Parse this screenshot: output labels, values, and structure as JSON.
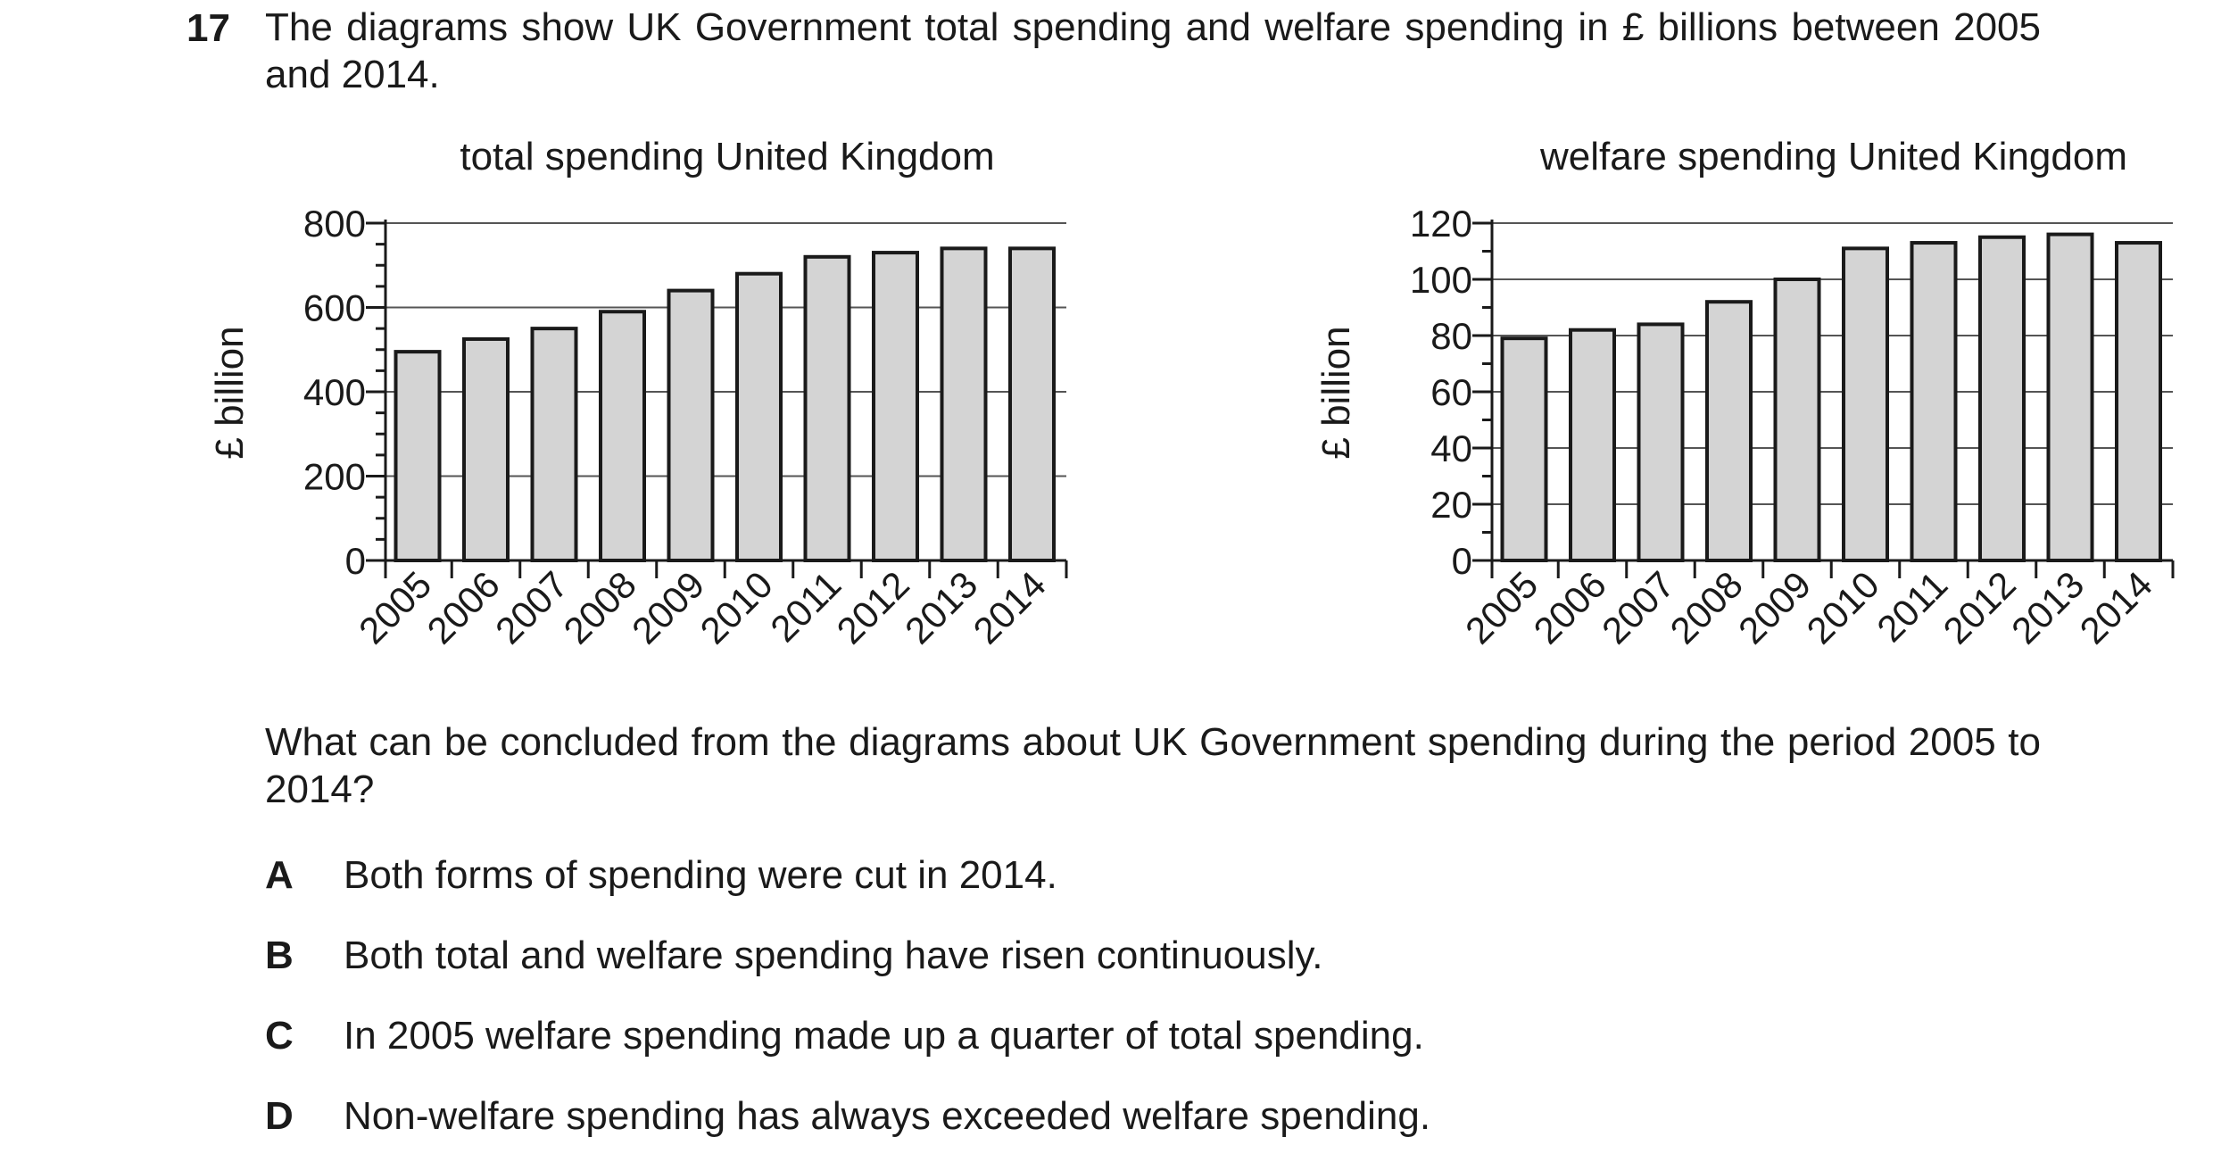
{
  "question": {
    "number": "17",
    "stem": "The diagrams show UK Government total spending and welfare spending in £ billions between 2005 and 2014.",
    "prompt": "What can be concluded from the diagrams about UK Government spending during the period 2005 to 2014?",
    "options": [
      {
        "letter": "A",
        "text": "Both forms of spending were cut in 2014."
      },
      {
        "letter": "B",
        "text": "Both total and welfare spending have risen continuously."
      },
      {
        "letter": "C",
        "text": "In 2005 welfare spending made up a quarter of total spending."
      },
      {
        "letter": "D",
        "text": "Non-welfare spending has always exceeded welfare spending."
      }
    ]
  },
  "colors": {
    "bar_fill": "#d4d4d4",
    "bar_stroke": "#1a1a1a",
    "gridline": "#555555"
  },
  "chart_data": [
    {
      "type": "bar",
      "title": "total spending United Kingdom",
      "ylabel": "£ billion",
      "xlabel": "",
      "categories": [
        "2005",
        "2006",
        "2007",
        "2008",
        "2009",
        "2010",
        "2011",
        "2012",
        "2013",
        "2014"
      ],
      "values": [
        495,
        525,
        550,
        590,
        640,
        680,
        720,
        730,
        740,
        740
      ],
      "ylim": [
        0,
        800
      ],
      "yticks": [
        "0",
        "200",
        "400",
        "600",
        "800"
      ],
      "minor_ticks_per_major": 4,
      "grid": true
    },
    {
      "type": "bar",
      "title": "welfare spending United Kingdom",
      "ylabel": "£ billion",
      "xlabel": "",
      "categories": [
        "2005",
        "2006",
        "2007",
        "2008",
        "2009",
        "2010",
        "2011",
        "2012",
        "2013",
        "2014"
      ],
      "values": [
        79,
        82,
        84,
        92,
        100,
        111,
        113,
        115,
        116,
        113
      ],
      "ylim": [
        0,
        120
      ],
      "yticks": [
        "0",
        "20",
        "40",
        "60",
        "80",
        "100",
        "120"
      ],
      "minor_ticks_per_major": 2,
      "grid": true
    }
  ]
}
